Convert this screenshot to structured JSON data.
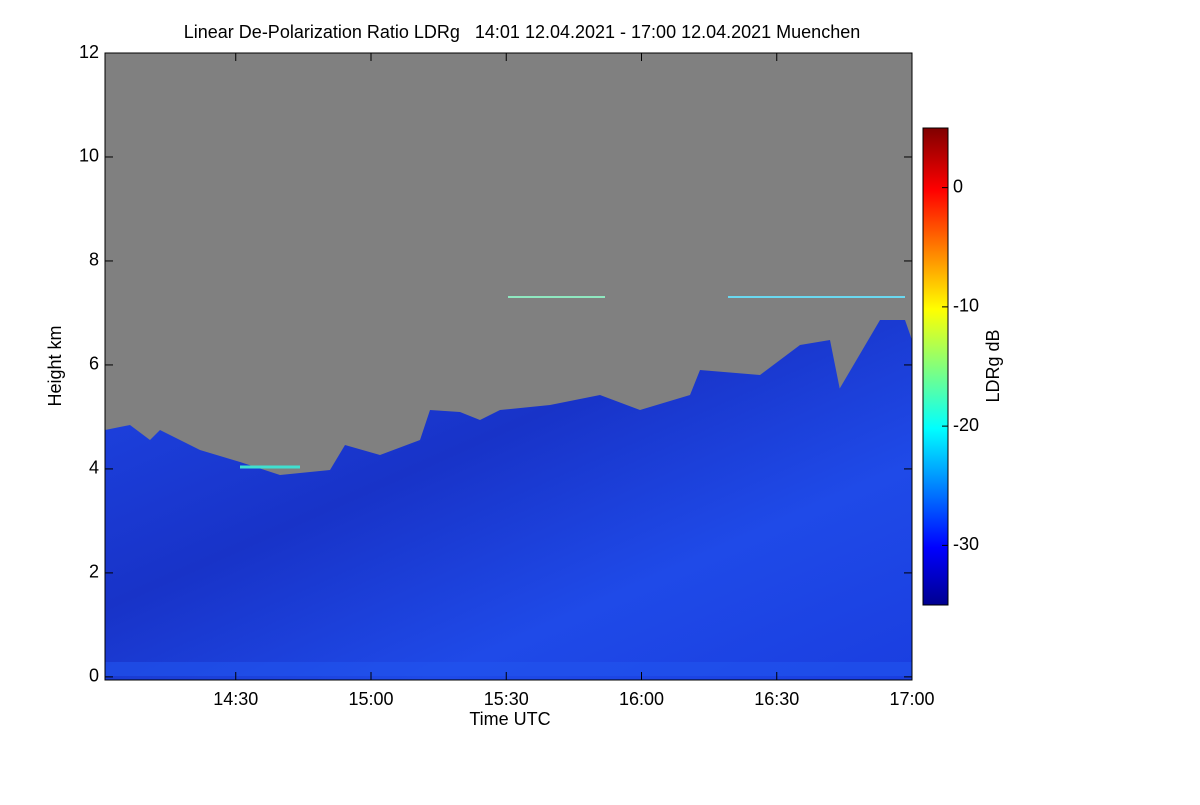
{
  "chart_data": {
    "type": "heatmap",
    "title": "Linear De-Polarization Ratio LDRg   14:01 12.04.2021 - 17:00 12.04.2021 Muenchen",
    "x_label": "Time UTC",
    "y_label": "Height km",
    "colorbar_label": "LDRg dB",
    "xlim": [
      841,
      1020
    ],
    "xticks": [
      {
        "value": 870,
        "label": "14:30"
      },
      {
        "value": 900,
        "label": "15:00"
      },
      {
        "value": 930,
        "label": "15:30"
      },
      {
        "value": 960,
        "label": "16:00"
      },
      {
        "value": 990,
        "label": "16:30"
      },
      {
        "value": 1020,
        "label": "17:00"
      }
    ],
    "ylim": [
      -0.06,
      12
    ],
    "yticks": [
      0,
      2,
      4,
      6,
      8,
      10,
      12
    ],
    "clim": [
      -35,
      5
    ],
    "cticks": [
      -30,
      -20,
      -10,
      0
    ]
  }
}
